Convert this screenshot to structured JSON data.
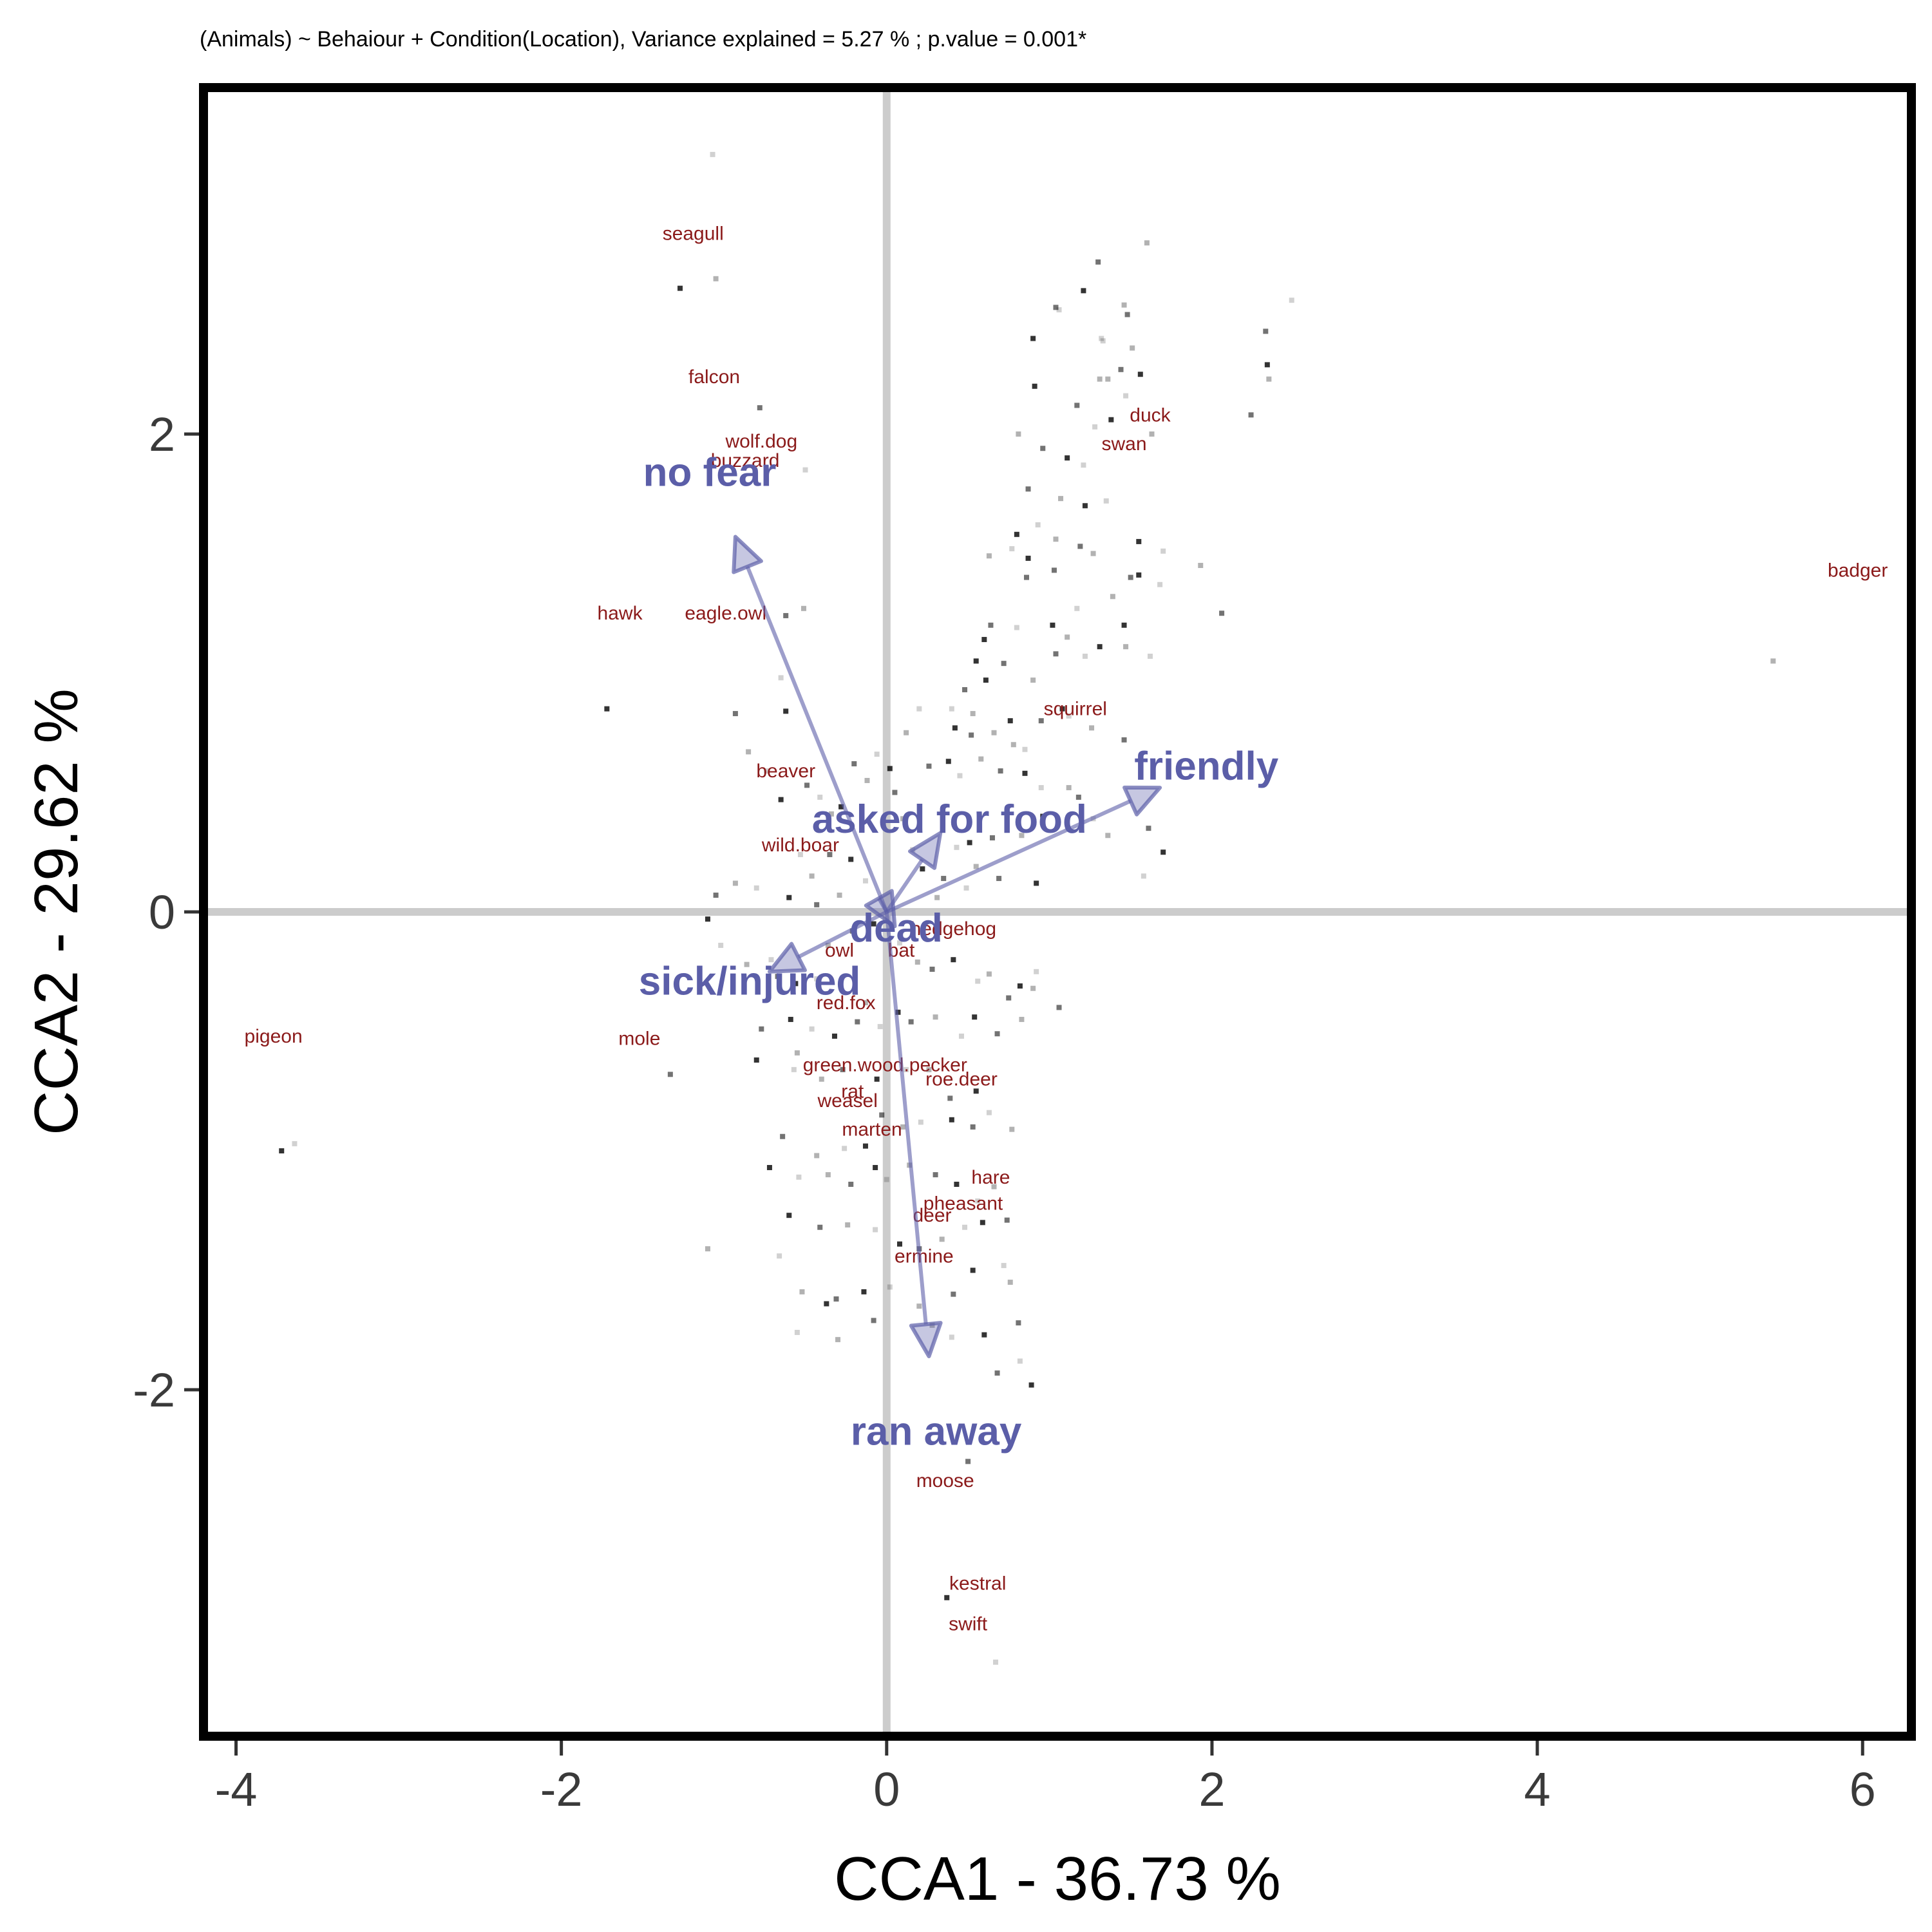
{
  "chart_data": {
    "type": "scatter",
    "title": "(Animals) ~ Behaiour + Condition(Location), Variance explained = 5.27 % ; p.value = 0.001*",
    "xlabel": "CCA1 - 36.73 %",
    "ylabel": "CCA2 - 29.62 %",
    "xlim": [
      -4.2,
      6.3
    ],
    "ylim": [
      -3.45,
      3.45
    ],
    "x_ticks": [
      "-4",
      "-2",
      "0",
      "2",
      "4",
      "6"
    ],
    "x_tick_values": [
      -4,
      -2,
      0,
      2,
      4,
      6
    ],
    "y_ticks": [
      "-2",
      "0",
      "2"
    ],
    "y_tick_values": [
      -2,
      0,
      2
    ],
    "reference_lines": {
      "x": 0,
      "y": 0,
      "color": "#cccccc"
    },
    "grid": false,
    "colors": {
      "species_text": "#8b1a1a",
      "arrow": "#5b5ea8",
      "site_point": "#000000",
      "axis_text": "#3a3a3a"
    },
    "biplot_arrows": [
      {
        "name": "no fear",
        "x": -0.93,
        "y": 1.57
      },
      {
        "name": "friendly",
        "x": 1.68,
        "y": 0.52
      },
      {
        "name": "asked for food",
        "x": 0.33,
        "y": 0.33
      },
      {
        "name": "dead",
        "x": 0.05,
        "y": -0.06
      },
      {
        "name": "sick/injured",
        "x": -0.72,
        "y": -0.25
      },
      {
        "name": "ran away",
        "x": 0.26,
        "y": -1.86
      }
    ],
    "species_scores": [
      {
        "name": "seagull",
        "x": -1.19,
        "y": 2.84
      },
      {
        "name": "falcon",
        "x": -1.06,
        "y": 2.24
      },
      {
        "name": "wolf.dog",
        "x": -0.77,
        "y": 1.97
      },
      {
        "name": "buzzard",
        "x": -0.87,
        "y": 1.89
      },
      {
        "name": "duck",
        "x": 1.62,
        "y": 2.08
      },
      {
        "name": "swan",
        "x": 1.46,
        "y": 1.96
      },
      {
        "name": "badger",
        "x": 5.97,
        "y": 1.43
      },
      {
        "name": "hawk",
        "x": -1.64,
        "y": 1.25
      },
      {
        "name": "eagle.owl",
        "x": -0.99,
        "y": 1.25
      },
      {
        "name": "squirrel",
        "x": 1.16,
        "y": 0.85
      },
      {
        "name": "beaver",
        "x": -0.62,
        "y": 0.59
      },
      {
        "name": "wild.boar",
        "x": -0.53,
        "y": 0.28
      },
      {
        "name": "hedgehog",
        "x": 0.41,
        "y": -0.07
      },
      {
        "name": "owl",
        "x": -0.29,
        "y": -0.16
      },
      {
        "name": "bat",
        "x": 0.09,
        "y": -0.16
      },
      {
        "name": "red.fox",
        "x": -0.25,
        "y": -0.38
      },
      {
        "name": "pigeon",
        "x": -3.77,
        "y": -0.52
      },
      {
        "name": "mole",
        "x": -1.52,
        "y": -0.53
      },
      {
        "name": "green.wood.pecker",
        "x": -0.01,
        "y": -0.64
      },
      {
        "name": "roe.deer",
        "x": 0.46,
        "y": -0.7
      },
      {
        "name": "rat",
        "x": -0.21,
        "y": -0.75
      },
      {
        "name": "weasel",
        "x": -0.24,
        "y": -0.79
      },
      {
        "name": "marten",
        "x": -0.09,
        "y": -0.91
      },
      {
        "name": "hare",
        "x": 0.64,
        "y": -1.11
      },
      {
        "name": "pheasant",
        "x": 0.47,
        "y": -1.22
      },
      {
        "name": "deer",
        "x": 0.28,
        "y": -1.27
      },
      {
        "name": "ermine",
        "x": 0.23,
        "y": -1.44
      },
      {
        "name": "moose",
        "x": 0.36,
        "y": -2.38
      },
      {
        "name": "kestral",
        "x": 0.56,
        "y": -2.81
      },
      {
        "name": "swift",
        "x": 0.5,
        "y": -2.98
      }
    ],
    "site_points": [
      [
        -1.07,
        3.17
      ],
      [
        -1.05,
        2.65
      ],
      [
        -0.78,
        2.11
      ],
      [
        -1.27,
        2.61
      ],
      [
        -0.5,
        1.85
      ],
      [
        1.6,
        2.8
      ],
      [
        1.3,
        2.72
      ],
      [
        1.21,
        2.6
      ],
      [
        1.06,
        2.52
      ],
      [
        1.46,
        2.54
      ],
      [
        1.48,
        2.5
      ],
      [
        0.9,
        2.4
      ],
      [
        1.32,
        2.4
      ],
      [
        1.51,
        2.36
      ],
      [
        1.04,
        2.53
      ],
      [
        0.91,
        2.2
      ],
      [
        1.33,
        2.39
      ],
      [
        1.36,
        2.23
      ],
      [
        1.44,
        2.27
      ],
      [
        1.56,
        2.25
      ],
      [
        1.47,
        2.16
      ],
      [
        1.31,
        2.23
      ],
      [
        1.17,
        2.12
      ],
      [
        1.38,
        2.06
      ],
      [
        1.28,
        2.03
      ],
      [
        1.63,
        2.0
      ],
      [
        2.33,
        2.43
      ],
      [
        2.34,
        2.29
      ],
      [
        2.49,
        2.56
      ],
      [
        2.35,
        2.23
      ],
      [
        2.24,
        2.08
      ],
      [
        1.11,
        1.9
      ],
      [
        1.21,
        1.87
      ],
      [
        0.81,
        2.0
      ],
      [
        0.96,
        1.94
      ],
      [
        1.22,
        1.7
      ],
      [
        1.35,
        1.72
      ],
      [
        1.07,
        1.73
      ],
      [
        0.87,
        1.77
      ],
      [
        0.8,
        1.58
      ],
      [
        0.93,
        1.62
      ],
      [
        1.04,
        1.56
      ],
      [
        1.19,
        1.53
      ],
      [
        1.55,
        1.55
      ],
      [
        1.7,
        1.51
      ],
      [
        1.93,
        1.45
      ],
      [
        2.06,
        1.25
      ],
      [
        1.55,
        1.41
      ],
      [
        1.68,
        1.37
      ],
      [
        1.27,
        1.5
      ],
      [
        1.03,
        1.43
      ],
      [
        0.87,
        1.48
      ],
      [
        0.77,
        1.52
      ],
      [
        0.63,
        1.49
      ],
      [
        0.86,
        1.4
      ],
      [
        1.02,
        1.2
      ],
      [
        1.17,
        1.27
      ],
      [
        1.39,
        1.32
      ],
      [
        1.5,
        1.4
      ],
      [
        1.46,
        1.2
      ],
      [
        1.62,
        1.07
      ],
      [
        1.11,
        1.15
      ],
      [
        1.04,
        1.08
      ],
      [
        1.31,
        1.11
      ],
      [
        1.22,
        1.07
      ],
      [
        1.47,
        1.11
      ],
      [
        0.64,
        1.2
      ],
      [
        0.6,
        1.14
      ],
      [
        0.8,
        1.19
      ],
      [
        0.9,
        0.97
      ],
      [
        0.95,
        0.8
      ],
      [
        1.08,
        0.85
      ],
      [
        1.12,
        0.82
      ],
      [
        1.26,
        0.77
      ],
      [
        1.46,
        0.72
      ],
      [
        0.61,
        0.97
      ],
      [
        0.4,
        0.85
      ],
      [
        0.53,
        0.83
      ],
      [
        0.48,
        0.93
      ],
      [
        0.76,
        0.8
      ],
      [
        0.85,
        0.68
      ],
      [
        0.78,
        0.7
      ],
      [
        0.52,
        0.74
      ],
      [
        0.42,
        0.77
      ],
      [
        0.2,
        0.85
      ],
      [
        0.12,
        0.75
      ],
      [
        0.26,
        0.61
      ],
      [
        0.38,
        0.63
      ],
      [
        0.45,
        0.57
      ],
      [
        0.58,
        0.64
      ],
      [
        0.7,
        0.59
      ],
      [
        0.85,
        0.58
      ],
      [
        0.95,
        0.52
      ],
      [
        1.12,
        0.52
      ],
      [
        1.18,
        0.48
      ],
      [
        0.96,
        0.4
      ],
      [
        1.27,
        0.39
      ],
      [
        1.36,
        0.32
      ],
      [
        1.61,
        0.35
      ],
      [
        1.7,
        0.25
      ],
      [
        1.58,
        0.15
      ],
      [
        0.83,
        0.32
      ],
      [
        0.65,
        0.31
      ],
      [
        0.51,
        0.29
      ],
      [
        0.43,
        0.27
      ],
      [
        0.55,
        0.19
      ],
      [
        0.69,
        0.14
      ],
      [
        0.92,
        0.12
      ],
      [
        0.49,
        0.1
      ],
      [
        0.31,
        0.06
      ],
      [
        0.35,
        0.14
      ],
      [
        0.22,
        0.18
      ],
      [
        0.16,
        0.26
      ],
      [
        0.1,
        0.39
      ],
      [
        0.05,
        0.5
      ],
      [
        0.02,
        0.6
      ],
      [
        -0.06,
        0.66
      ],
      [
        -0.12,
        0.55
      ],
      [
        -0.2,
        0.62
      ],
      [
        -0.28,
        0.44
      ],
      [
        -0.41,
        0.48
      ],
      [
        -0.34,
        0.41
      ],
      [
        -0.49,
        0.53
      ],
      [
        -0.65,
        0.47
      ],
      [
        -0.74,
        0.59
      ],
      [
        -0.85,
        0.67
      ],
      [
        -0.93,
        0.83
      ],
      [
        -0.62,
        0.84
      ],
      [
        -0.65,
        0.98
      ],
      [
        -0.51,
        1.27
      ],
      [
        -0.62,
        1.24
      ],
      [
        -1.72,
        0.85
      ],
      [
        -0.53,
        0.24
      ],
      [
        -0.46,
        0.15
      ],
      [
        -0.35,
        0.24
      ],
      [
        -0.22,
        0.22
      ],
      [
        -0.13,
        0.13
      ],
      [
        -0.29,
        0.07
      ],
      [
        -0.43,
        0.03
      ],
      [
        -0.6,
        0.06
      ],
      [
        -0.8,
        0.1
      ],
      [
        -0.93,
        0.12
      ],
      [
        -1.05,
        0.07
      ],
      [
        -1.1,
        -0.03
      ],
      [
        -1.02,
        -0.14
      ],
      [
        -0.86,
        -0.22
      ],
      [
        -0.67,
        -0.27
      ],
      [
        -0.56,
        -0.3
      ],
      [
        -0.43,
        -0.28
      ],
      [
        -0.36,
        -0.14
      ],
      [
        -0.21,
        -0.08
      ],
      [
        -0.08,
        -0.05
      ],
      [
        0.08,
        -0.13
      ],
      [
        0.19,
        -0.21
      ],
      [
        0.28,
        -0.24
      ],
      [
        0.41,
        -0.2
      ],
      [
        0.56,
        -0.29
      ],
      [
        0.63,
        -0.26
      ],
      [
        0.75,
        -0.36
      ],
      [
        0.82,
        -0.31
      ],
      [
        0.92,
        -0.25
      ],
      [
        0.83,
        -0.45
      ],
      [
        0.68,
        -0.51
      ],
      [
        0.54,
        -0.44
      ],
      [
        0.46,
        -0.52
      ],
      [
        0.3,
        -0.44
      ],
      [
        0.15,
        -0.46
      ],
      [
        0.07,
        -0.42
      ],
      [
        -0.04,
        -0.48
      ],
      [
        -0.13,
        -0.38
      ],
      [
        -0.18,
        -0.46
      ],
      [
        -0.32,
        -0.52
      ],
      [
        -0.46,
        -0.49
      ],
      [
        -0.55,
        -0.59
      ],
      [
        -0.77,
        -0.49
      ],
      [
        -0.8,
        -0.62
      ],
      [
        -0.57,
        -0.66
      ],
      [
        -0.4,
        -0.7
      ],
      [
        -0.27,
        -0.66
      ],
      [
        -0.06,
        -0.7
      ],
      [
        0.12,
        -0.66
      ],
      [
        0.26,
        -0.66
      ],
      [
        0.39,
        -0.78
      ],
      [
        0.55,
        -0.75
      ],
      [
        0.63,
        -0.84
      ],
      [
        0.77,
        -0.91
      ],
      [
        0.53,
        -0.9
      ],
      [
        0.4,
        -0.87
      ],
      [
        0.21,
        -0.88
      ],
      [
        0.1,
        -0.9
      ],
      [
        -0.03,
        -0.85
      ],
      [
        -0.13,
        -0.98
      ],
      [
        -0.26,
        -0.99
      ],
      [
        -0.43,
        -1.02
      ],
      [
        -0.64,
        -0.94
      ],
      [
        -0.72,
        -1.07
      ],
      [
        -0.54,
        -1.11
      ],
      [
        -0.36,
        -1.1
      ],
      [
        -0.22,
        -1.14
      ],
      [
        -0.07,
        -1.07
      ],
      [
        0.0,
        -1.12
      ],
      [
        0.14,
        -1.06
      ],
      [
        0.3,
        -1.1
      ],
      [
        0.43,
        -1.14
      ],
      [
        0.56,
        -1.21
      ],
      [
        0.66,
        -1.15
      ],
      [
        0.74,
        -1.29
      ],
      [
        0.59,
        -1.3
      ],
      [
        0.48,
        -1.32
      ],
      [
        0.34,
        -1.37
      ],
      [
        0.2,
        -1.41
      ],
      [
        0.08,
        -1.39
      ],
      [
        -0.07,
        -1.33
      ],
      [
        -0.24,
        -1.31
      ],
      [
        -0.41,
        -1.32
      ],
      [
        -0.6,
        -1.27
      ],
      [
        -0.66,
        -1.44
      ],
      [
        -0.52,
        -1.59
      ],
      [
        -0.31,
        -1.62
      ],
      [
        -0.14,
        -1.59
      ],
      [
        0.02,
        -1.57
      ],
      [
        0.2,
        -1.65
      ],
      [
        0.41,
        -1.6
      ],
      [
        0.53,
        -1.5
      ],
      [
        0.72,
        -1.48
      ],
      [
        0.76,
        -1.55
      ],
      [
        0.81,
        -1.72
      ],
      [
        0.6,
        -1.77
      ],
      [
        0.4,
        -1.78
      ],
      [
        0.28,
        -1.73
      ],
      [
        -0.08,
        -1.71
      ],
      [
        -0.37,
        -1.64
      ],
      [
        -0.55,
        -1.76
      ],
      [
        -0.3,
        -1.79
      ],
      [
        0.68,
        -1.93
      ],
      [
        0.89,
        -1.98
      ],
      [
        0.82,
        -1.88
      ],
      [
        -1.1,
        -1.41
      ],
      [
        -1.33,
        -0.68
      ],
      [
        -3.72,
        -1.0
      ],
      [
        -3.64,
        -0.97
      ],
      [
        5.45,
        1.05
      ],
      [
        0.5,
        -2.3
      ],
      [
        0.37,
        -2.87
      ],
      [
        0.67,
        -3.14
      ],
      [
        0.9,
        -0.32
      ],
      [
        1.06,
        -0.4
      ],
      [
        -0.59,
        -0.45
      ],
      [
        -0.71,
        -0.2
      ],
      [
        0.66,
        0.75
      ],
      [
        0.72,
        1.04
      ],
      [
        0.55,
        1.05
      ]
    ]
  }
}
